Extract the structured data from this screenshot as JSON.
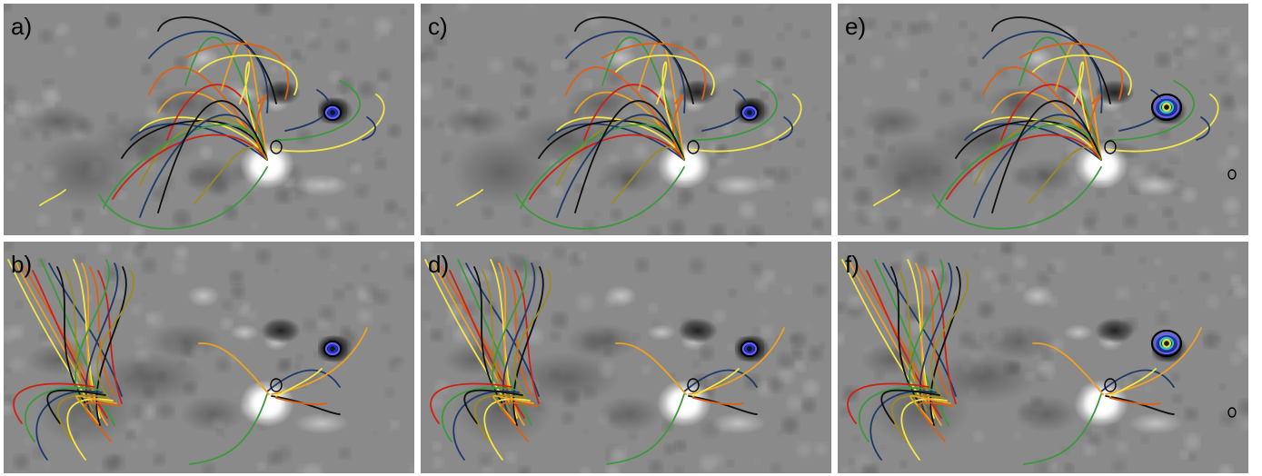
{
  "figure": {
    "panels": [
      {
        "label": "a)"
      },
      {
        "label": "c)"
      },
      {
        "label": "e)"
      },
      {
        "label": "b)"
      },
      {
        "label": "d)"
      },
      {
        "label": "f)"
      }
    ],
    "colors": {
      "magnetogram_background": "#8a8a8a",
      "positive_polarity": "#ffffff",
      "negative_polarity": "#1e1e1e",
      "field_lines": [
        "#f5e642",
        "#f0a020",
        "#e06010",
        "#d02010",
        "#3a9a3a",
        "#1e3a6a",
        "#101010",
        "#9a8a20"
      ],
      "contours": [
        "#000000",
        "#2030c0",
        "#6060ff",
        "#30c0c0",
        "#e0e040"
      ]
    }
  }
}
